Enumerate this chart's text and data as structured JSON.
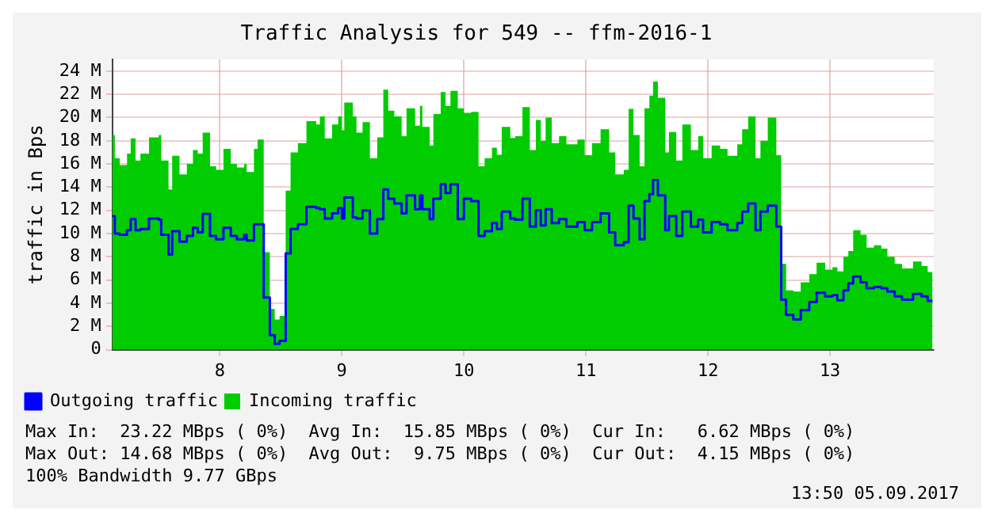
{
  "chart_data": {
    "type": "area",
    "title": "Traffic Analysis for 549 -- ffm-2016-1",
    "ylabel": "traffic in Bps",
    "x": [
      7.12,
      7.14,
      7.18,
      7.24,
      7.27,
      7.31,
      7.35,
      7.42,
      7.5,
      7.52,
      7.58,
      7.61,
      7.67,
      7.73,
      7.78,
      7.82,
      7.86,
      7.92,
      7.97,
      8.03,
      8.09,
      8.14,
      8.2,
      8.22,
      8.28,
      8.31,
      8.36,
      8.41,
      8.45,
      8.49,
      8.54,
      8.58,
      8.64,
      8.71,
      8.79,
      8.82,
      8.86,
      8.92,
      8.97,
      9.0,
      9.02,
      9.09,
      9.12,
      9.17,
      9.23,
      9.29,
      9.34,
      9.38,
      9.43,
      9.49,
      9.53,
      9.6,
      9.64,
      9.66,
      9.72,
      9.75,
      9.81,
      9.85,
      9.89,
      9.95,
      10.0,
      10.06,
      10.12,
      10.17,
      10.23,
      10.27,
      10.31,
      10.38,
      10.42,
      10.48,
      10.54,
      10.59,
      10.63,
      10.67,
      10.72,
      10.78,
      10.84,
      10.93,
      10.99,
      11.05,
      11.12,
      11.19,
      11.24,
      11.31,
      11.35,
      11.39,
      11.44,
      11.48,
      11.52,
      11.55,
      11.59,
      11.65,
      11.68,
      11.74,
      11.79,
      11.86,
      11.92,
      11.96,
      12.03,
      12.1,
      12.16,
      12.24,
      12.28,
      12.33,
      12.39,
      12.43,
      12.49,
      12.56,
      12.6,
      12.64,
      12.7,
      12.76,
      12.83,
      12.89,
      12.96,
      13.02,
      13.06,
      13.11,
      13.15,
      13.19,
      13.25,
      13.3,
      13.36,
      13.42,
      13.47,
      13.53,
      13.59,
      13.68,
      13.75,
      13.8,
      13.84
    ],
    "series": [
      {
        "name": "Incoming traffic",
        "type": "area",
        "color": "#00cc00",
        "values": [
          18.5,
          16.5,
          15.9,
          16.9,
          18.2,
          16.3,
          16.9,
          18.3,
          18.5,
          16.3,
          13.8,
          16.7,
          15.1,
          16,
          17.2,
          16.9,
          18.7,
          15.8,
          15.5,
          17.3,
          16,
          15.7,
          16,
          15.3,
          17.3,
          18.1,
          8.4,
          3.5,
          2.6,
          2.9,
          13.7,
          17,
          17.8,
          19.7,
          19.4,
          20.1,
          18.2,
          19.4,
          20.1,
          18.9,
          21.3,
          20.1,
          18.7,
          19.6,
          16.5,
          18.3,
          22.4,
          20.6,
          20.1,
          18.4,
          20.8,
          19.3,
          21,
          19.2,
          17.6,
          20.3,
          22.2,
          21,
          22.3,
          20.8,
          20.4,
          20.5,
          15.8,
          16.5,
          17.4,
          16.8,
          19.2,
          18.25,
          18.4,
          20.9,
          17.2,
          19.8,
          18,
          20,
          17.8,
          18.4,
          17.7,
          18.1,
          16.75,
          17.8,
          19,
          17,
          15.1,
          15.5,
          20.75,
          18.5,
          15.8,
          20.8,
          21.9,
          23.1,
          21.7,
          17,
          18.75,
          16.3,
          19.4,
          17.2,
          18.4,
          16.5,
          17.6,
          17.3,
          16.7,
          17.7,
          19,
          20.1,
          16.5,
          18,
          20,
          16.75,
          7.4,
          5.1,
          5,
          5.8,
          6.5,
          7.5,
          6.9,
          7.1,
          6.75,
          8,
          8.5,
          10.3,
          9.9,
          8.8,
          9,
          8.7,
          8,
          7.4,
          7,
          7.6,
          7.2,
          6.7,
          6.7
        ]
      },
      {
        "name": "Outgoing traffic",
        "type": "step",
        "color": "#0000ff",
        "values": [
          11.5,
          10,
          9.9,
          10.3,
          11.25,
          10.3,
          10.4,
          11.3,
          11.2,
          9.9,
          8.2,
          10.2,
          9.3,
          9.8,
          10.5,
          10.1,
          11.7,
          9.8,
          9.5,
          10.5,
          9.8,
          9.5,
          9.9,
          9.4,
          10.8,
          10.8,
          4.5,
          1.25,
          0.5,
          0.75,
          8.3,
          10.4,
          10.8,
          12.3,
          12.2,
          12.1,
          11.3,
          11.75,
          12.2,
          11.3,
          13.1,
          11.4,
          11.3,
          12,
          10,
          11.25,
          13.8,
          13,
          12.6,
          11.75,
          13.3,
          12.1,
          13.3,
          12.1,
          11.25,
          13,
          14.25,
          13.5,
          14.25,
          11.25,
          13,
          12.8,
          9.8,
          10.2,
          10.9,
          10.4,
          11.9,
          11.3,
          11.2,
          13,
          10.6,
          12,
          10.7,
          12.1,
          10.9,
          11.25,
          10.6,
          11,
          10.3,
          11,
          11.75,
          10.1,
          9,
          9.25,
          12.4,
          11.3,
          9.5,
          12.8,
          13.4,
          14.6,
          13.3,
          10.3,
          11.5,
          9.8,
          11.9,
          10.6,
          11.2,
          10.1,
          11,
          10.8,
          10.3,
          10.9,
          11.9,
          12.6,
          10.3,
          11.9,
          12.4,
          10.6,
          4.3,
          3,
          2.6,
          3.4,
          4.1,
          4.9,
          4.6,
          4.7,
          4.25,
          5.1,
          5.7,
          6.3,
          5.8,
          5.3,
          5.4,
          5.3,
          5,
          4.6,
          4.3,
          4.8,
          4.6,
          4.2,
          4.2
        ]
      }
    ],
    "xlim": [
      7.12,
      13.85
    ],
    "xticks": [
      8,
      9,
      10,
      11,
      12,
      13
    ],
    "ylim": [
      0,
      25
    ],
    "yticks": [
      0,
      {
        "value": 2,
        "label": "2 M"
      },
      {
        "value": 4,
        "label": "4 M"
      },
      {
        "value": 6,
        "label": "6 M"
      },
      {
        "value": 8,
        "label": "8 M"
      },
      {
        "value": 10,
        "label": "10 M"
      },
      {
        "value": 12,
        "label": "12 M"
      },
      {
        "value": 14,
        "label": "14 M"
      },
      {
        "value": 16,
        "label": "16 M"
      },
      {
        "value": 18,
        "label": "18 M"
      },
      {
        "value": 20,
        "label": "20 M"
      },
      {
        "value": 22,
        "label": "22 M"
      },
      {
        "value": 24,
        "label": "24 M"
      }
    ],
    "grid": true,
    "legend": "bottom",
    "annotations": [
      "Max In:  23.22 MBps ( 0%)  Avg In:  15.85 MBps ( 0%)  Cur In:   6.62 MBps ( 0%)",
      "Max Out: 14.68 MBps ( 0%)  Avg Out:  9.75 MBps ( 0%)  Cur Out:  4.15 MBps ( 0%)",
      "100% Bandwidth 9.77 GBps",
      "13:50 05.09.2017"
    ]
  }
}
